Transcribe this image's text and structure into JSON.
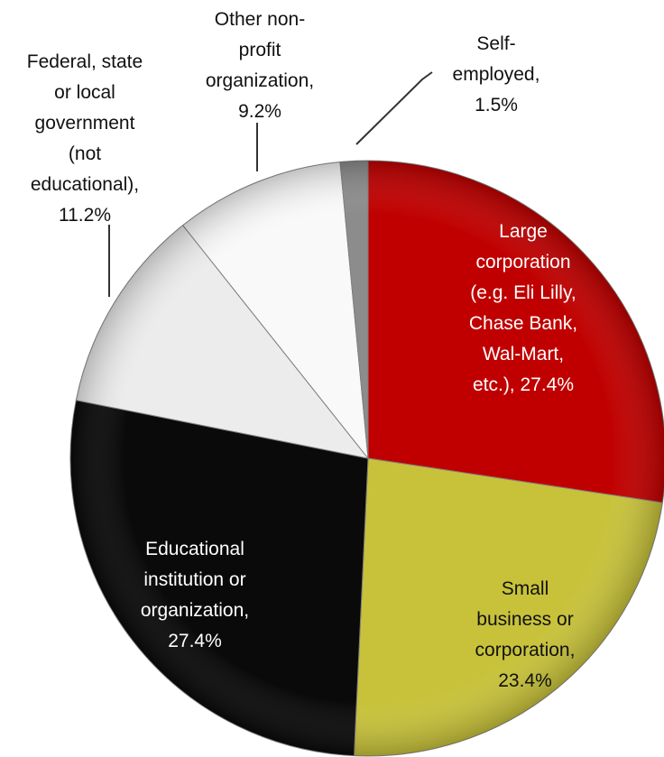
{
  "chart_data": {
    "type": "pie",
    "title": "",
    "legend": "none",
    "slices": [
      {
        "label": [
          "Large",
          "corporation",
          "(e.g. Eli Lilly,",
          "Chase Bank,",
          "Wal-Mart,",
          "etc.), 27.4%"
        ],
        "value": 27.4,
        "color": "#c00000"
      },
      {
        "label": [
          "Small",
          "business or",
          "corporation,",
          "23.4%"
        ],
        "value": 23.4,
        "color": "#c8c23a"
      },
      {
        "label": [
          "Educational",
          "institution or",
          "organization,",
          "27.4%"
        ],
        "value": 27.4,
        "color": "#0a0a0a"
      },
      {
        "label": [
          "Federal, state",
          "or local",
          "government",
          "(not",
          "educational),",
          "11.2%"
        ],
        "value": 11.2,
        "color": "#ececec"
      },
      {
        "label": [
          "Other non-",
          "profit",
          "organization,",
          "9.2%"
        ],
        "value": 9.2,
        "color": "#f9f9f9"
      },
      {
        "label": [
          "Self-",
          "employed,",
          "1.5%"
        ],
        "value": 1.5,
        "color": "#8c8c8c"
      }
    ]
  }
}
